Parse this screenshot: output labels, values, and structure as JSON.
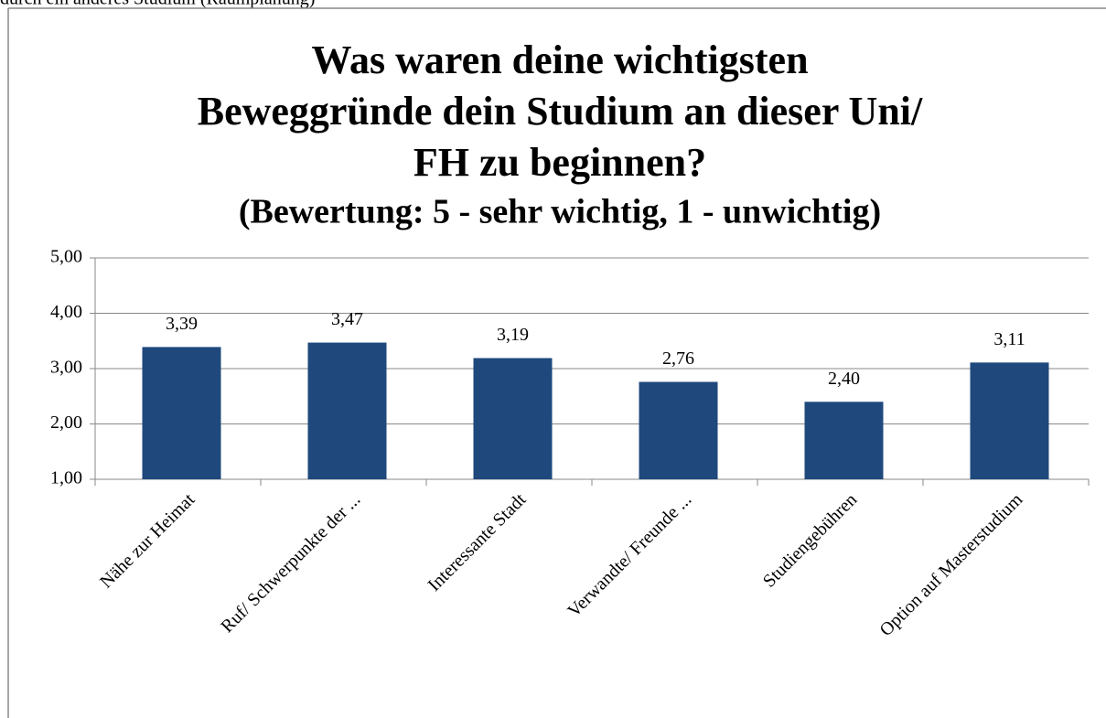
{
  "page_text": "durch ein anderes Studium (Raumplanung)",
  "chart_data": {
    "type": "bar",
    "title": [
      "Was waren deine wichtigsten",
      "Beweggründe dein Studium an dieser Uni/",
      "FH zu beginnen?"
    ],
    "subtitle": "(Bewertung: 5 - sehr wichtig, 1 - unwichtig)",
    "categories": [
      "Nähe zur Heimat",
      "Ruf/ Schwerpunkte der ...",
      "Interessante Stadt",
      "Verwandte/ Freunde ...",
      "Studiengebühren",
      "Option auf Masterstudium"
    ],
    "values": [
      3.39,
      3.47,
      3.19,
      2.76,
      2.4,
      3.11
    ],
    "value_labels": [
      "3,39",
      "3,47",
      "3,19",
      "2,76",
      "2,40",
      "3,11"
    ],
    "color": "#1f497d",
    "ylim": [
      1,
      5
    ],
    "yticks": [
      {
        "value": 1,
        "label": "1,00"
      },
      {
        "value": 2,
        "label": "2,00"
      },
      {
        "value": 3,
        "label": "3,00"
      },
      {
        "value": 4,
        "label": "4,00"
      },
      {
        "value": 5,
        "label": "5,00"
      }
    ],
    "grid": true
  }
}
